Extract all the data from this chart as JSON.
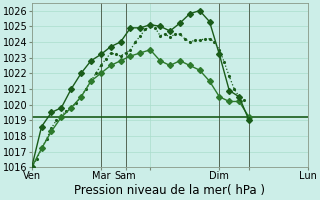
{
  "xlabel": "Pression niveau de la mer( hPa )",
  "bg_color": "#cceee8",
  "grid_color": "#aaddcc",
  "line_dark": "#1a5c1a",
  "line_medium": "#2d7a2d",
  "ylim": [
    1016,
    1026.5
  ],
  "xlim": [
    0,
    56
  ],
  "yticks": [
    1016,
    1017,
    1018,
    1019,
    1020,
    1021,
    1022,
    1023,
    1024,
    1025,
    1026
  ],
  "xtick_positions": [
    0,
    14,
    19,
    24,
    38,
    44,
    56
  ],
  "xtick_labels": [
    "Ven",
    "Mar",
    "Sam",
    "",
    "Dim",
    "",
    "Lun"
  ],
  "vlines": [
    14,
    19,
    38,
    44
  ],
  "xlabel_fontsize": 8.5,
  "tick_fontsize": 7,
  "series_dotted": {
    "x": [
      0,
      1,
      2,
      3,
      4,
      5,
      6,
      7,
      8,
      9,
      10,
      11,
      12,
      13,
      14,
      15,
      16,
      17,
      18,
      19,
      20,
      21,
      22,
      23,
      24,
      25,
      26,
      27,
      28,
      29,
      30,
      31,
      32,
      33,
      34,
      35,
      36,
      37,
      38,
      39,
      40,
      41,
      42,
      43
    ],
    "y": [
      1016.0,
      1016.5,
      1017.2,
      1017.8,
      1018.5,
      1019.0,
      1019.3,
      1019.6,
      1019.8,
      1020.1,
      1020.5,
      1021.0,
      1021.5,
      1022.0,
      1022.5,
      1022.9,
      1023.3,
      1023.2,
      1023.1,
      1023.3,
      1023.5,
      1024.0,
      1024.4,
      1024.8,
      1025.0,
      1024.9,
      1024.4,
      1024.5,
      1024.3,
      1024.5,
      1024.5,
      1024.2,
      1024.0,
      1024.1,
      1024.1,
      1024.2,
      1024.2,
      1024.0,
      1023.5,
      1022.7,
      1021.8,
      1021.0,
      1020.5,
      1020.3
    ],
    "markersize": 2.5,
    "linewidth": 0.9
  },
  "series_top": {
    "x": [
      0,
      2,
      4,
      6,
      8,
      10,
      12,
      14,
      16,
      18,
      20,
      22,
      24,
      26,
      28,
      30,
      32,
      34,
      36,
      38,
      40,
      42,
      44
    ],
    "y": [
      1016.0,
      1018.6,
      1019.5,
      1019.8,
      1021.0,
      1022.0,
      1022.8,
      1023.2,
      1023.7,
      1024.0,
      1024.9,
      1024.9,
      1025.1,
      1025.0,
      1024.7,
      1025.2,
      1025.8,
      1026.0,
      1025.3,
      1023.2,
      1020.9,
      1020.5,
      1019.0
    ],
    "markersize": 3.0,
    "linewidth": 1.0
  },
  "series_mid": {
    "x": [
      0,
      2,
      4,
      6,
      8,
      10,
      12,
      14,
      16,
      18,
      20,
      22,
      24,
      26,
      28,
      30,
      32,
      34,
      36,
      38,
      40,
      42,
      44
    ],
    "y": [
      1016.0,
      1017.2,
      1018.3,
      1019.2,
      1019.8,
      1020.5,
      1021.5,
      1022.0,
      1022.5,
      1022.8,
      1023.1,
      1023.3,
      1023.5,
      1022.8,
      1022.5,
      1022.8,
      1022.5,
      1022.2,
      1021.5,
      1020.5,
      1020.2,
      1020.2,
      1019.2
    ],
    "markersize": 3.0,
    "linewidth": 1.0
  },
  "series_flat": {
    "x": [
      0,
      14,
      19,
      38,
      44,
      56
    ],
    "y": [
      1019.2,
      1019.2,
      1019.2,
      1019.2,
      1019.2,
      1019.2
    ],
    "linewidth": 1.2
  }
}
